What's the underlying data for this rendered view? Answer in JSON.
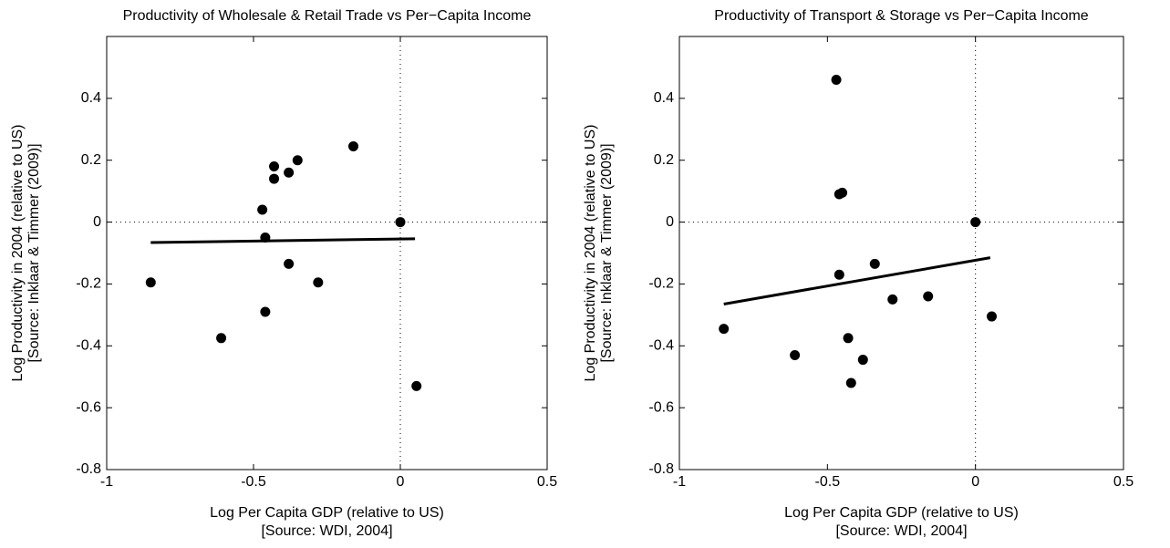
{
  "chart_data": [
    {
      "type": "scatter",
      "title": "Productivity of Wholesale & Retail Trade vs Per−Capita Income",
      "xlabel": [
        "Log Per Capita GDP (relative to US)",
        "[Source: WDI, 2004]"
      ],
      "ylabel": [
        "Log Productivity in 2004 (relative to US)",
        "[Source: Inklaar & Timmer (2009)]"
      ],
      "x": [
        -0.85,
        -0.61,
        -0.46,
        -0.47,
        -0.46,
        -0.43,
        -0.43,
        -0.38,
        -0.38,
        -0.35,
        -0.28,
        -0.16,
        0,
        0.055
      ],
      "y": [
        -0.195,
        -0.375,
        -0.29,
        0.04,
        -0.05,
        0.18,
        0.14,
        0.16,
        -0.135,
        0.2,
        -0.195,
        0.245,
        0,
        -0.53
      ],
      "color": "#000000",
      "fit_line": {
        "x": [
          -0.85,
          0.05
        ],
        "y": [
          -0.066,
          -0.054
        ]
      },
      "hlines": [
        0
      ],
      "vlines": [
        0
      ],
      "xlim": [
        -1,
        0.5
      ],
      "ylim": [
        -0.8,
        0.6
      ],
      "xticks": [
        -1,
        -0.5,
        0,
        0.5
      ],
      "yticks": [
        -0.8,
        -0.6,
        -0.4,
        -0.2,
        0,
        0.2,
        0.4
      ]
    },
    {
      "type": "scatter",
      "title": "Productivity of Transport & Storage vs Per−Capita Income",
      "xlabel": [
        "Log Per Capita GDP (relative to US)",
        "[Source: WDI, 2004]"
      ],
      "ylabel": [
        "Log Productivity in 2004 (relative to US)",
        "[Source: Inklaar & Timmer (2009)]"
      ],
      "x": [
        -0.85,
        -0.61,
        -0.46,
        -0.46,
        -0.45,
        -0.47,
        -0.43,
        -0.42,
        -0.38,
        -0.34,
        -0.28,
        -0.16,
        0,
        0.055
      ],
      "y": [
        -0.345,
        -0.43,
        -0.17,
        0.09,
        0.095,
        0.46,
        -0.375,
        -0.52,
        -0.445,
        -0.135,
        -0.25,
        -0.24,
        0,
        -0.305
      ],
      "color": "#000000",
      "fit_line": {
        "x": [
          -0.85,
          0.05
        ],
        "y": [
          -0.265,
          -0.115
        ]
      },
      "hlines": [
        0
      ],
      "vlines": [
        0
      ],
      "xlim": [
        -1,
        0.5
      ],
      "ylim": [
        -0.8,
        0.6
      ],
      "xticks": [
        -1,
        -0.5,
        0,
        0.5
      ],
      "yticks": [
        -0.8,
        -0.6,
        -0.4,
        -0.2,
        0,
        0.2,
        0.4
      ]
    }
  ]
}
